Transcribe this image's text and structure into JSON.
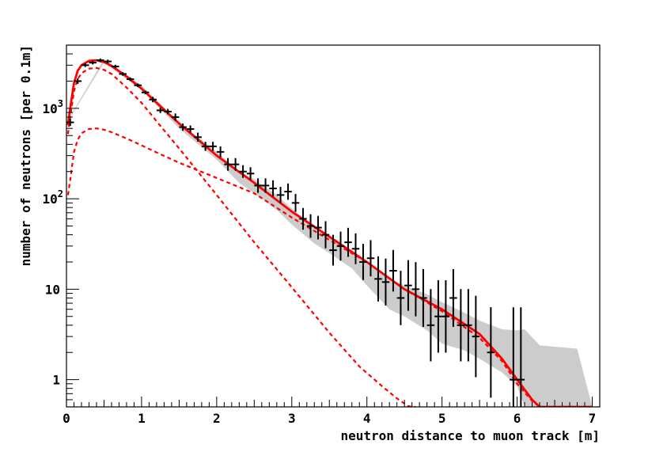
{
  "chart_data": {
    "type": "line",
    "title": "",
    "xlabel": "neutron distance to muon track [m]",
    "ylabel": "number of neutrons [per 0.1m]",
    "xlim": [
      0,
      7.1
    ],
    "ylim": [
      0.5,
      5000
    ],
    "yscale": "log",
    "grid": false,
    "x_ticks": [
      {
        "v": 0,
        "label": "0"
      },
      {
        "v": 1,
        "label": "1"
      },
      {
        "v": 2,
        "label": "2"
      },
      {
        "v": 3,
        "label": "3"
      },
      {
        "v": 4,
        "label": "4"
      },
      {
        "v": 5,
        "label": "5"
      },
      {
        "v": 6,
        "label": "6"
      },
      {
        "v": 7,
        "label": "7"
      }
    ],
    "y_ticks": [
      {
        "v": 1,
        "label": "1",
        "exp": ""
      },
      {
        "v": 10,
        "label": "10",
        "exp": ""
      },
      {
        "v": 100,
        "label": "10",
        "exp": "2"
      },
      {
        "v": 1000,
        "label": "10",
        "exp": "3"
      }
    ],
    "colors": {
      "data": "#000000",
      "total": "#ff0000",
      "components": "#ff0000",
      "band": "#cccccc"
    },
    "series": [
      {
        "kind": "data-points",
        "x": [
          0.05,
          0.15,
          0.25,
          0.35,
          0.45,
          0.55,
          0.65,
          0.75,
          0.85,
          0.95,
          1.05,
          1.15,
          1.25,
          1.35,
          1.45,
          1.55,
          1.65,
          1.75,
          1.85,
          1.95,
          2.05,
          2.15,
          2.25,
          2.35,
          2.45,
          2.55,
          2.65,
          2.75,
          2.85,
          2.95,
          3.05,
          3.15,
          3.25,
          3.35,
          3.45,
          3.55,
          3.65,
          3.75,
          3.85,
          3.95,
          4.05,
          4.15,
          4.25,
          4.35,
          4.45,
          4.55,
          4.65,
          4.75,
          4.85,
          4.95,
          5.05,
          5.15,
          5.25,
          5.35,
          5.45,
          5.65,
          5.95,
          6.05
        ],
        "y": [
          700,
          2000,
          3000,
          3200,
          3400,
          3300,
          2900,
          2400,
          2100,
          1800,
          1500,
          1250,
          950,
          920,
          800,
          620,
          590,
          480,
          380,
          380,
          330,
          240,
          240,
          200,
          190,
          140,
          140,
          130,
          110,
          120,
          90,
          60,
          50,
          48,
          40,
          27,
          30,
          33,
          28,
          20,
          22,
          13,
          12,
          16,
          8,
          11,
          10,
          8,
          4,
          5,
          5,
          8,
          4,
          4,
          3,
          2,
          1,
          1
        ],
        "err": [
          0.04,
          0.03,
          0.02,
          0.02,
          0.02,
          0.02,
          0.02,
          0.02,
          0.02,
          0.02,
          0.02,
          0.03,
          0.03,
          0.03,
          0.04,
          0.04,
          0.04,
          0.05,
          0.05,
          0.05,
          0.06,
          0.07,
          0.07,
          0.07,
          0.07,
          0.08,
          0.08,
          0.09,
          0.09,
          0.09,
          0.1,
          0.12,
          0.13,
          0.13,
          0.15,
          0.17,
          0.16,
          0.16,
          0.17,
          0.2,
          0.2,
          0.25,
          0.26,
          0.23,
          0.3,
          0.28,
          0.3,
          0.32,
          0.4,
          0.4,
          0.4,
          0.32,
          0.4,
          0.4,
          0.45,
          0.5,
          0.8,
          0.8
        ]
      },
      {
        "kind": "total",
        "x": [
          0.02,
          0.05,
          0.1,
          0.15,
          0.2,
          0.3,
          0.4,
          0.5,
          0.6,
          0.8,
          1.0,
          1.2,
          1.5,
          2.0,
          2.5,
          3.0,
          3.5,
          4.0,
          4.5,
          5.0,
          5.5,
          5.8,
          6.0,
          6.2,
          6.3,
          6.35,
          7.0
        ],
        "y": [
          650,
          1000,
          1900,
          2600,
          3000,
          3350,
          3400,
          3250,
          2950,
          2250,
          1650,
          1150,
          680,
          300,
          150,
          72,
          38,
          20,
          10,
          6.0,
          3.2,
          1.7,
          1.0,
          0.6,
          0.5,
          0.5,
          0.5
        ]
      },
      {
        "kind": "component",
        "x": [
          0.02,
          0.05,
          0.1,
          0.15,
          0.2,
          0.3,
          0.4,
          0.5,
          0.6,
          0.8,
          1.0,
          1.2,
          1.5,
          2.0,
          2.5,
          3.0,
          3.5,
          3.9,
          4.2,
          4.4,
          4.55,
          4.6,
          4.65
        ],
        "y": [
          520,
          800,
          1550,
          2100,
          2450,
          2750,
          2800,
          2660,
          2400,
          1700,
          1150,
          720,
          360,
          110,
          33,
          10.5,
          3.3,
          1.4,
          0.85,
          0.62,
          0.51,
          0.5,
          0.5
        ]
      },
      {
        "kind": "component",
        "x": [
          0.02,
          0.05,
          0.1,
          0.15,
          0.2,
          0.3,
          0.4,
          0.5,
          0.6,
          0.8,
          1.0,
          1.2,
          1.5,
          2.0,
          2.5,
          3.0,
          3.5,
          4.0,
          4.5,
          5.0,
          5.5,
          5.8,
          6.0,
          6.2,
          6.3,
          6.35
        ],
        "y": [
          110,
          160,
          330,
          450,
          530,
          590,
          600,
          580,
          545,
          465,
          390,
          325,
          250,
          170,
          115,
          62,
          35,
          20,
          10,
          5.7,
          2.9,
          1.6,
          0.9,
          0.58,
          0.5,
          0.5
        ]
      }
    ],
    "band": {
      "x": [
        0,
        0.5,
        1.0,
        1.5,
        2.0,
        2.3,
        2.5,
        2.8,
        3.0,
        3.3,
        3.5,
        3.8,
        4.0,
        4.3,
        4.5,
        4.8,
        5.0,
        5.3,
        5.5,
        5.8,
        6.0,
        6.1,
        6.3,
        6.8,
        7.0
      ],
      "upper": [
        700,
        3500,
        1800,
        700,
        330,
        200,
        165,
        110,
        78,
        48,
        38,
        27,
        20,
        13,
        11,
        8.8,
        7.2,
        5.5,
        4.5,
        3.6,
        3.5,
        3.6,
        2.4,
        2.2,
        0.5
      ],
      "lower": [
        680,
        3200,
        1600,
        600,
        270,
        150,
        115,
        75,
        52,
        32,
        25,
        17,
        11,
        6,
        5,
        3.5,
        2.5,
        2.1,
        1.7,
        1.2,
        0.85,
        0.5,
        0.5,
        0.5,
        0.5
      ]
    }
  }
}
